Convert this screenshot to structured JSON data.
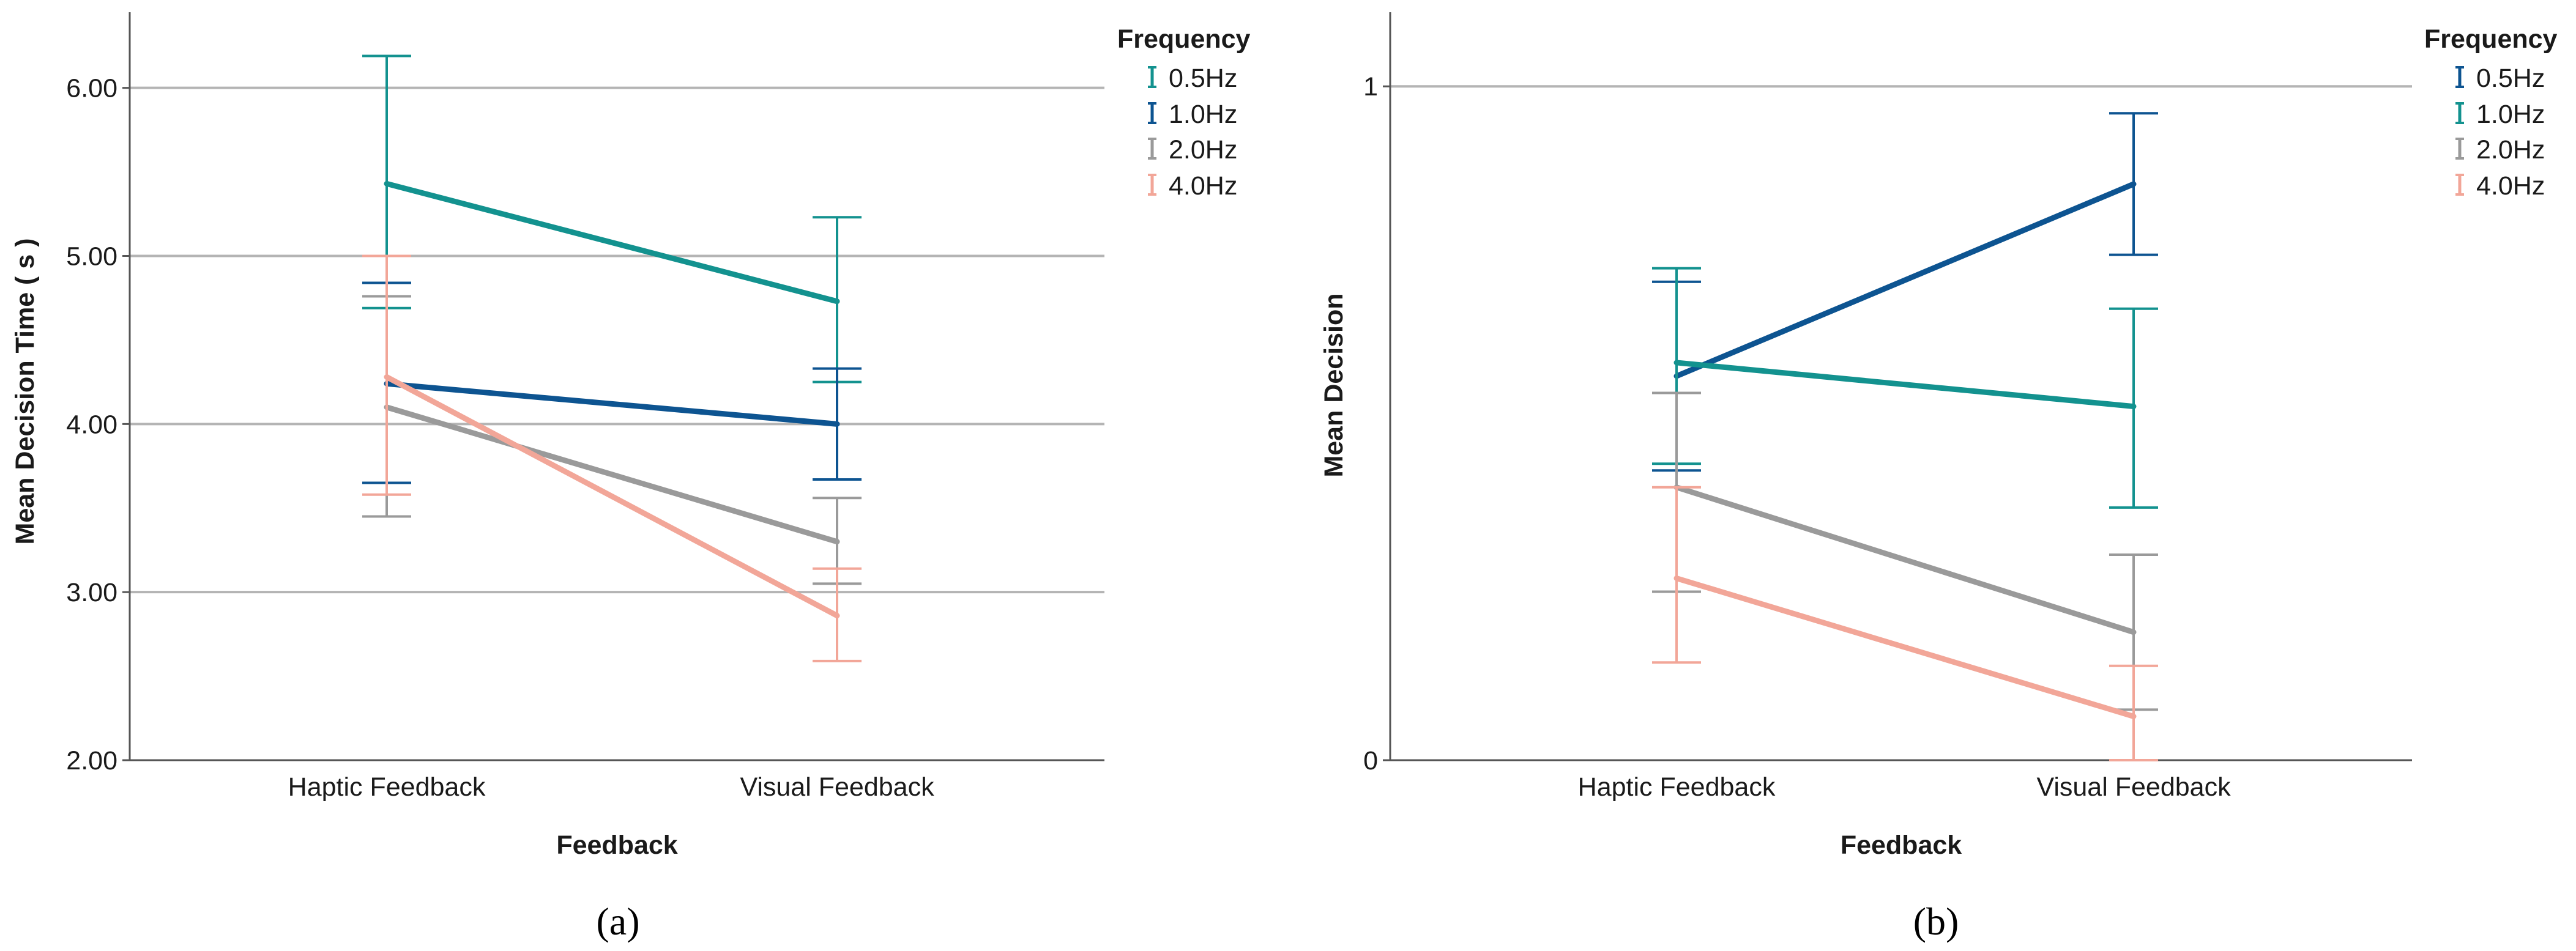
{
  "chart_data": [
    {
      "type": "line",
      "panel_label": "(a)",
      "xlabel": "Feedback",
      "ylabel": "Mean Decision Time ( s )",
      "categories": [
        "Haptic Feedback",
        "Visual Feedback"
      ],
      "ylim": [
        2.0,
        6.45
      ],
      "yticks": [
        2.0,
        3.0,
        4.0,
        5.0,
        6.0
      ],
      "ytick_labels": [
        "2.00",
        "3.00",
        "4.00",
        "5.00",
        "6.00"
      ],
      "gridlines": [
        3.0,
        4.0,
        5.0,
        6.0
      ],
      "legend": {
        "title": "Frequency",
        "placement": "right"
      },
      "series": [
        {
          "name": "0.5Hz",
          "color": "#13928f",
          "values": [
            5.43,
            4.73
          ],
          "err_low": [
            4.69,
            4.25
          ],
          "err_high": [
            6.19,
            5.23
          ]
        },
        {
          "name": "1.0Hz",
          "color": "#0d5491",
          "values": [
            4.24,
            4.0
          ],
          "err_low": [
            3.65,
            3.67
          ],
          "err_high": [
            4.84,
            4.33
          ]
        },
        {
          "name": "2.0Hz",
          "color": "#9a9a9a",
          "values": [
            4.1,
            3.3
          ],
          "err_low": [
            3.45,
            3.05
          ],
          "err_high": [
            4.76,
            3.56
          ]
        },
        {
          "name": "4.0Hz",
          "color": "#f2a698",
          "values": [
            4.28,
            2.86
          ],
          "err_low": [
            3.58,
            2.59
          ],
          "err_high": [
            5.0,
            3.14
          ]
        }
      ]
    },
    {
      "type": "line",
      "panel_label": "(b)",
      "xlabel": "Feedback",
      "ylabel": "Mean Decision",
      "categories": [
        "Haptic Feedback",
        "Visual Feedback"
      ],
      "ylim": [
        0,
        1.11
      ],
      "yticks": [
        0,
        1
      ],
      "ytick_labels": [
        "0",
        "1"
      ],
      "gridlines": [
        1
      ],
      "legend": {
        "title": "Frequency",
        "placement": "right"
      },
      "series": [
        {
          "name": "0.5Hz",
          "color": "#0d5491",
          "values": [
            0.57,
            0.855
          ],
          "err_low": [
            0.43,
            0.75
          ],
          "err_high": [
            0.71,
            0.96
          ]
        },
        {
          "name": "1.0Hz",
          "color": "#13928f",
          "values": [
            0.59,
            0.525
          ],
          "err_low": [
            0.44,
            0.375
          ],
          "err_high": [
            0.73,
            0.67
          ]
        },
        {
          "name": "2.0Hz",
          "color": "#9a9a9a",
          "values": [
            0.405,
            0.19
          ],
          "err_low": [
            0.25,
            0.075
          ],
          "err_high": [
            0.545,
            0.305
          ]
        },
        {
          "name": "4.0Hz",
          "color": "#f2a698",
          "values": [
            0.27,
            0.065
          ],
          "err_low": [
            0.145,
            0.0
          ],
          "err_high": [
            0.405,
            0.14
          ]
        }
      ]
    }
  ]
}
